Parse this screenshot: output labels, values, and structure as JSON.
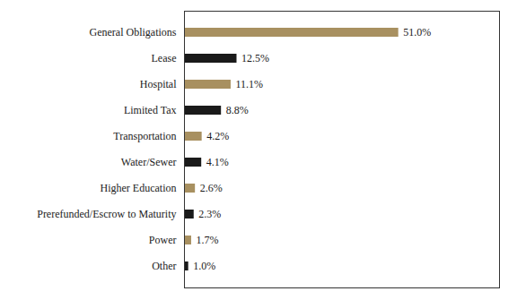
{
  "chart_data": {
    "type": "bar",
    "orientation": "horizontal",
    "categories": [
      "General Obligations",
      "Lease",
      "Hospital",
      "Limited Tax",
      "Transportation",
      "Water/Sewer",
      "Higher Education",
      "Prerefunded/Escrow to Maturity",
      "Power",
      "Other"
    ],
    "values": [
      51.0,
      12.5,
      11.1,
      8.8,
      4.2,
      4.1,
      2.6,
      2.3,
      1.7,
      1.0
    ],
    "value_labels": [
      "51.0%",
      "12.5%",
      "11.1%",
      "8.8%",
      "4.2%",
      "4.1%",
      "2.6%",
      "2.3%",
      "1.7%",
      "1.0%"
    ],
    "colors": [
      "#a89060",
      "#1a1a1a",
      "#a89060",
      "#1a1a1a",
      "#a89060",
      "#1a1a1a",
      "#a89060",
      "#1a1a1a",
      "#a89060",
      "#1a1a1a"
    ],
    "xlim": [
      0,
      75
    ],
    "data_labels": true,
    "tick_labels": "y"
  }
}
